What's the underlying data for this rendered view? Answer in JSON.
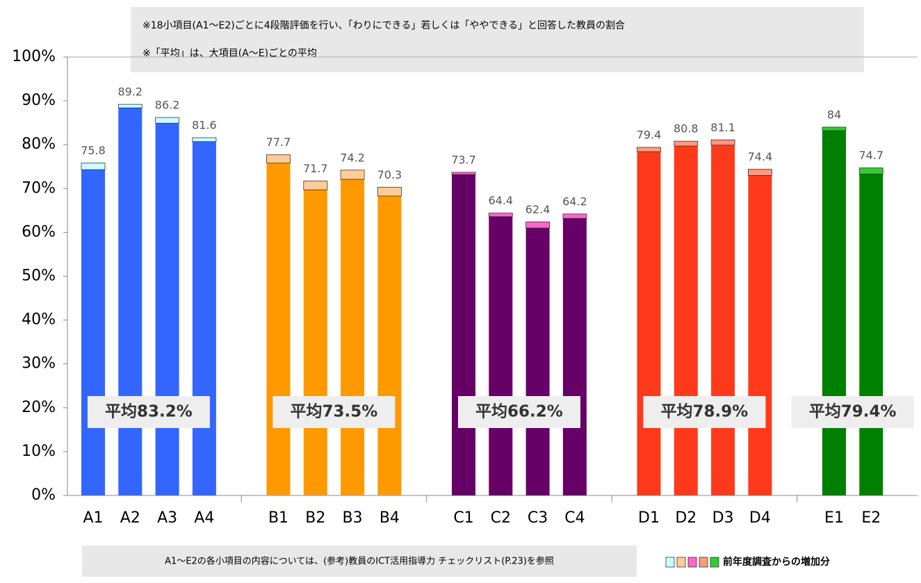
{
  "chart_data": {
    "type": "bar",
    "notes": [
      "※18小項目(A1～E2)ごとに4段階評価を行い、「わりにできる」若しくは「ややできる」と回答した教員の割合",
      "※「平均」は、大項目(A～E)ごとの平均"
    ],
    "footnote": "A1～E2の各小項目の内容については、(参考)教員のICT活用指導力 チェックリスト(P.23)を参照",
    "legend_label": "前年度調査からの増加分",
    "ylim": [
      0,
      100
    ],
    "yticks": [
      {
        "value": 0,
        "label": "0%"
      },
      {
        "value": 10,
        "label": "10%"
      },
      {
        "value": 20,
        "label": "20%"
      },
      {
        "value": 30,
        "label": "30%"
      },
      {
        "value": 40,
        "label": "40%"
      },
      {
        "value": 50,
        "label": "50%"
      },
      {
        "value": 60,
        "label": "60%"
      },
      {
        "value": 70,
        "label": "70%"
      },
      {
        "value": 80,
        "label": "80%"
      },
      {
        "value": 90,
        "label": "90%"
      },
      {
        "value": 100,
        "label": "100%"
      }
    ],
    "groups": [
      {
        "categories": [
          "A1",
          "A2",
          "A3",
          "A4"
        ],
        "values": [
          75.8,
          89.2,
          86.2,
          81.6
        ],
        "increase": [
          1.5,
          0.8,
          1.3,
          0.9
        ],
        "color": "#3366ff",
        "increase_color": "#ccffff",
        "average_label": "平均83.2%"
      },
      {
        "categories": [
          "B1",
          "B2",
          "B3",
          "B4"
        ],
        "values": [
          77.7,
          71.7,
          74.2,
          70.3
        ],
        "increase": [
          1.9,
          2.0,
          2.1,
          2.0
        ],
        "color": "#ff9900",
        "increase_color": "#ffcc99",
        "average_label": "平均73.5%"
      },
      {
        "categories": [
          "C1",
          "C2",
          "C3",
          "C4"
        ],
        "values": [
          73.7,
          64.4,
          62.4,
          64.2
        ],
        "increase": [
          0.5,
          0.8,
          1.4,
          1.0
        ],
        "color": "#660066",
        "increase_color": "#ff66cc",
        "average_label": "平均66.2%"
      },
      {
        "categories": [
          "D1",
          "D2",
          "D3",
          "D4"
        ],
        "values": [
          79.4,
          80.8,
          81.1,
          74.4
        ],
        "increase": [
          1.0,
          1.1,
          1.2,
          1.4
        ],
        "color": "#ff3a1a",
        "increase_color": "#ff9980",
        "average_label": "平均78.9%"
      },
      {
        "categories": [
          "E1",
          "E2"
        ],
        "values": [
          84.0,
          74.7
        ],
        "increase": [
          0.8,
          1.4
        ],
        "color": "#008000",
        "increase_color": "#33cc33",
        "average_label": "平均79.4%"
      }
    ]
  }
}
